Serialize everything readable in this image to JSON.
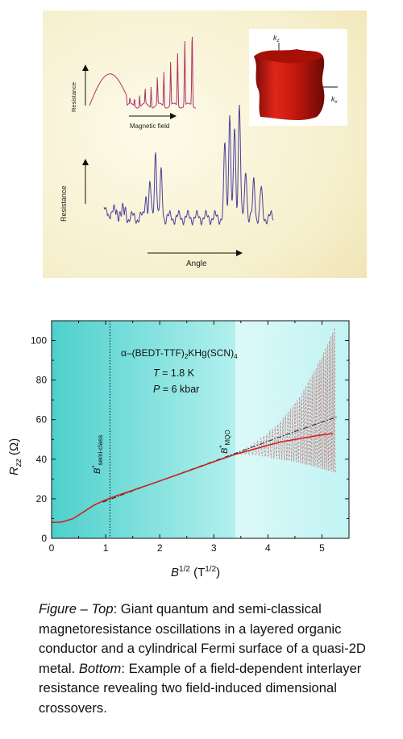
{
  "top_figure": {
    "inset_xlabel": "Magnetic field",
    "inset_ylabel": "Resistance",
    "main_xlabel": "Angle",
    "main_ylabel": "Resistance",
    "fermi_kz": "k",
    "fermi_kz_sub": "z",
    "fermi_kx": "k",
    "fermi_kx_sub": "x",
    "colors": {
      "background": "#f8f3d6",
      "trace": "#4a3f9a",
      "inset_trace": "#b0306c",
      "surface": "#cc1a10"
    }
  },
  "chart_data": {
    "type": "line",
    "title": "",
    "material": {
      "pre": "α–(BEDT-TTF)",
      "sub1": "2",
      "mid": "KHg(SCN)",
      "sub2": "4"
    },
    "annotations": [
      {
        "label": "T",
        "text": " = 1.8 K"
      },
      {
        "label": "P",
        "text": " = 6 kbar"
      }
    ],
    "markers": [
      {
        "symbol": "B",
        "sup": "*",
        "sub": "semi-class",
        "x": 1.08,
        "style": "dotted vertical line"
      },
      {
        "symbol": "B",
        "sup": "*",
        "sub": "MQO",
        "x": 3.4,
        "style": "shading boundary"
      }
    ],
    "xlabel": {
      "base": "B",
      "sup": "1/2",
      "unit_open": " (T",
      "unit_sup": "1/2",
      "unit_close": ")"
    },
    "ylabel": {
      "base": "R",
      "sub": "zz",
      "unit": " (Ω)"
    },
    "xlim": [
      0,
      5.5
    ],
    "ylim": [
      0,
      110
    ],
    "xticks": [
      "0",
      "1",
      "2",
      "3",
      "4",
      "5"
    ],
    "yticks": [
      "0",
      "20",
      "40",
      "60",
      "80",
      "100"
    ],
    "series": [
      {
        "style": "solid",
        "color": "#d42020",
        "x": [
          0,
          0.2,
          0.4,
          0.6,
          0.8,
          1.0,
          1.2,
          1.5,
          2.0,
          2.5,
          3.0,
          3.4,
          3.8,
          4.2,
          4.6,
          5.0,
          5.2
        ],
        "y": [
          8,
          8.3,
          10,
          13.5,
          17,
          19.5,
          21.5,
          24.3,
          29,
          33.8,
          38.7,
          42.5,
          45.5,
          48.5,
          50.5,
          52.3,
          53
        ]
      },
      {
        "style": "dash-dot",
        "color": "#222222",
        "x": [
          0.95,
          1.5,
          2.0,
          2.5,
          3.0,
          3.5,
          4.0,
          4.5,
          5.0,
          5.3
        ],
        "y": [
          18.3,
          24,
          29,
          34,
          39,
          44,
          49,
          54,
          58.8,
          61.5
        ]
      },
      {
        "style": "dashed oscillation envelope upper",
        "color": "#d48080",
        "x": [
          3.4,
          3.8,
          4.2,
          4.6,
          5.0,
          5.25
        ],
        "y": [
          42.5,
          49,
          58,
          72,
          92,
          108
        ]
      },
      {
        "style": "dashed oscillation envelope lower",
        "color": "#d48080",
        "x": [
          3.4,
          3.8,
          4.2,
          4.6,
          5.0,
          5.25
        ],
        "y": [
          42.5,
          42,
          40,
          38,
          35,
          33
        ]
      }
    ],
    "background": {
      "left_shade": "#4ed0cc",
      "right_shade": "#dffafa"
    }
  },
  "caption": {
    "figure_label": "Figure – Top",
    "top_text": ": Giant quantum  and semi-classical magnetoresistance oscillations in a layered organic conductor and a cylindrical Fermi surface of a quasi-2D metal. ",
    "bottom_label": "Bottom",
    "bottom_text": ": Example of a field-dependent interlayer resistance revealing two field-induced dimensional crossovers."
  }
}
